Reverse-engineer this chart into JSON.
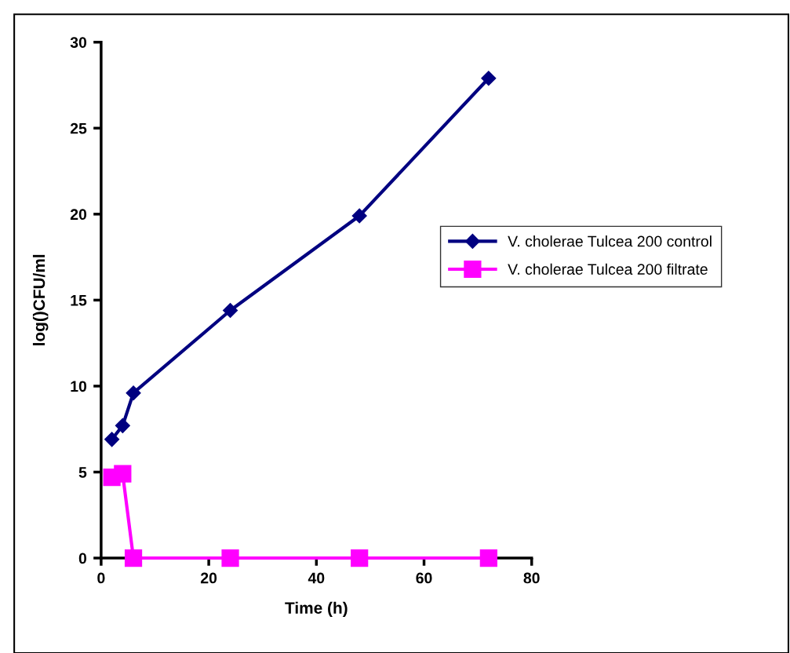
{
  "chart_data": {
    "type": "line",
    "xlabel": "Time (h)",
    "ylabel": "log()CFU/ml",
    "xlim": [
      0,
      80
    ],
    "xticks": [
      0,
      20,
      40,
      60,
      80
    ],
    "ylim": [
      0,
      30
    ],
    "yticks": [
      0,
      5,
      10,
      15,
      20,
      25,
      30
    ],
    "grid": false,
    "legend": "right",
    "line_style": "solid",
    "series": [
      {
        "name": "V. cholerae Tulcea 200 control",
        "color": "#000080",
        "marker": "diamond",
        "x": [
          2,
          4,
          6,
          24,
          48,
          72
        ],
        "values": [
          6.9,
          7.7,
          9.6,
          14.4,
          19.9,
          27.9
        ]
      },
      {
        "name": "V. cholerae Tulcea 200 filtrate",
        "color": "#ff00ff",
        "marker": "square",
        "x": [
          2,
          4,
          6,
          24,
          48,
          72
        ],
        "values": [
          4.7,
          4.9,
          0,
          0,
          0,
          0
        ]
      }
    ]
  }
}
